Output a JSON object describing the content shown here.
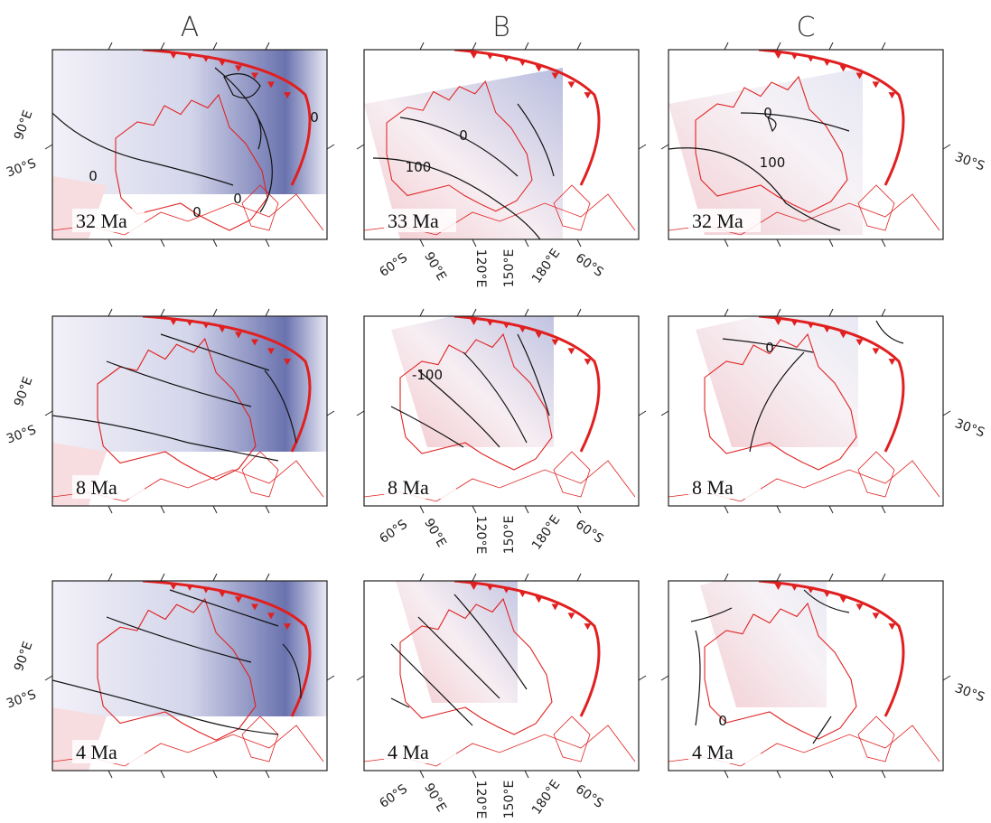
{
  "headers": [
    "A",
    "B",
    "C"
  ],
  "rows": [
    {
      "panels": [
        {
          "label": "32 Ma",
          "contour_labels": [
            "0",
            "0",
            "0",
            "0"
          ]
        },
        {
          "label": "33 Ma",
          "contour_labels": [
            "0",
            "100"
          ]
        },
        {
          "label": "32 Ma",
          "contour_labels": [
            "0",
            "100"
          ]
        }
      ],
      "left_labels": [
        "90°E",
        "30°S"
      ],
      "bottom_labels": [
        "60°S",
        "90°E",
        "120°E",
        "150°E",
        "180°E",
        "60°S"
      ],
      "right_labels": [
        "30°S"
      ]
    },
    {
      "panels": [
        {
          "label": "8 Ma",
          "contour_labels": []
        },
        {
          "label": "8 Ma",
          "contour_labels": [
            "-100"
          ]
        },
        {
          "label": "8 Ma",
          "contour_labels": [
            "0"
          ]
        }
      ],
      "left_labels": [
        "90°E",
        "30°S"
      ],
      "bottom_labels": [
        "60°S",
        "90°E",
        "120°E",
        "150°E",
        "180°E",
        "60°S"
      ],
      "right_labels": [
        "30°S"
      ]
    },
    {
      "panels": [
        {
          "label": "4 Ma",
          "contour_labels": []
        },
        {
          "label": "4 Ma",
          "contour_labels": []
        },
        {
          "label": "4 Ma",
          "contour_labels": [
            "0"
          ]
        }
      ],
      "left_labels": [
        "90°E",
        "30°S"
      ],
      "bottom_labels": [
        "60°S",
        "90°E",
        "120°E",
        "150°E",
        "180°E",
        "60°S"
      ],
      "right_labels": [
        "30°S"
      ]
    }
  ]
}
